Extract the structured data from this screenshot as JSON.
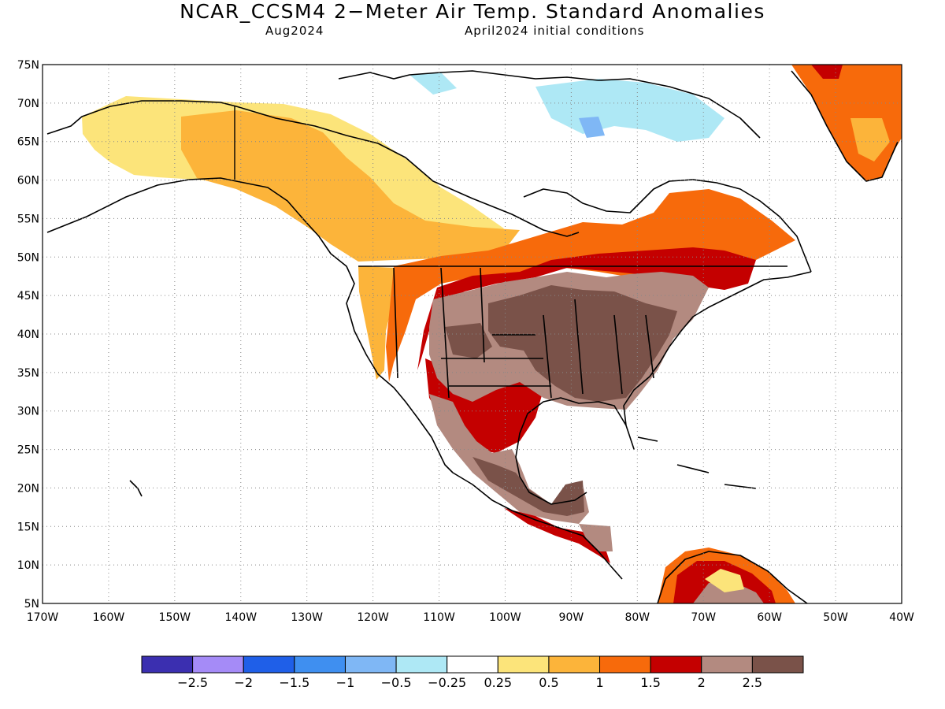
{
  "title": "NCAR_CCSM4 2−Meter Air Temp. Standard Anomalies",
  "valid_month": "Aug2024",
  "init_conditions": "April2024 initial conditions",
  "map": {
    "lon_range": [
      -170,
      -40
    ],
    "lat_range": [
      5,
      75
    ],
    "lat_ticks": [
      "75N",
      "70N",
      "65N",
      "60N",
      "55N",
      "50N",
      "45N",
      "40N",
      "35N",
      "30N",
      "25N",
      "20N",
      "15N",
      "10N",
      "5N"
    ],
    "lon_ticks": [
      "170W",
      "160W",
      "150W",
      "140W",
      "130W",
      "120W",
      "110W",
      "100W",
      "90W",
      "80W",
      "70W",
      "60W",
      "50W",
      "40W"
    ],
    "grid": "dotted"
  },
  "colorbar": {
    "colors": [
      "#3b2fb0",
      "#a58bf7",
      "#1f5fe8",
      "#3f8ff0",
      "#7fb7f5",
      "#aee8f5",
      "#ffffff",
      "#fce47a",
      "#fcb43a",
      "#f76a0b",
      "#c40000",
      "#b38a80",
      "#7a5249"
    ],
    "labels": [
      "−2.5",
      "−2",
      "−1.5",
      "−1",
      "−0.5",
      "−0.25",
      "0.25",
      "0.5",
      "1",
      "1.5",
      "2",
      "2.5"
    ]
  }
}
